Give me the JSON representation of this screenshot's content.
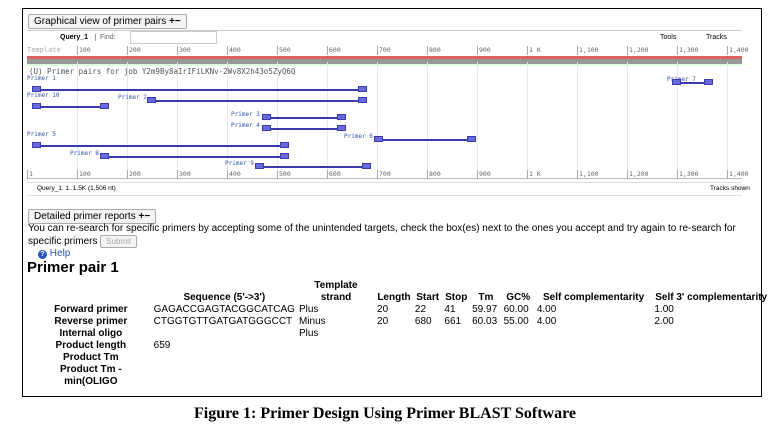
{
  "graphical": {
    "title": "Graphical view of primer pairs",
    "plus": "+",
    "minus": "−",
    "query_tab": "Query_1",
    "find_label": "Find:",
    "find_value": "",
    "tools": "Tools",
    "tracks": "Tracks",
    "template_label": "Template",
    "ticks": [
      "100",
      "200",
      "300",
      "400",
      "500",
      "600",
      "700",
      "800",
      "900",
      "1 K",
      "1,100",
      "1,200",
      "1,300",
      "1,400"
    ],
    "track_title": "(U) Primer pairs for job Y2m9By8aIrIFiLKNv-2Wv8X2h43o5ZyQ6Q",
    "primers": [
      "Primer 1",
      "Primer 10",
      "Primer 2",
      "Primer 3",
      "Primer 4",
      "Primer 5",
      "Primer 6",
      "Primer 7",
      "Primer 8",
      "Primer 9"
    ],
    "bottom_ticks": [
      "1",
      "100",
      "200",
      "300",
      "400",
      "500",
      "600",
      "700",
      "800",
      "900",
      "1 K",
      "1,100",
      "1,200",
      "1,300",
      "1,400"
    ],
    "range": "Query_1: 1..1.5K (1,506 nt)",
    "tracks_shown": "Tracks shown"
  },
  "detailed": {
    "title": "Detailed primer reports",
    "plus": "+",
    "minus": "−",
    "message": "You can re-search for specific primers by accepting some of the unintended targets, check the box(es) next to the ones you accept and try again to re-search for specific primers",
    "submit": "Submit",
    "help": "Help"
  },
  "pair": {
    "title": "Primer pair 1",
    "headers": [
      "",
      "Sequence (5'->3')",
      "Template strand",
      "Length",
      "Start",
      "Stop",
      "Tm",
      "GC%",
      "Self complementarity",
      "Self 3' complementarity"
    ],
    "rows": [
      [
        "Forward primer",
        "GAGACCGAGTACGGCATCAG",
        "Plus",
        "20",
        "22",
        "41",
        "59.97",
        "60.00",
        "4.00",
        "1.00"
      ],
      [
        "Reverse primer",
        "CTGGTGTTGATGATGGGCCT",
        "Minus",
        "20",
        "680",
        "661",
        "60.03",
        "55.00",
        "4.00",
        "2.00"
      ],
      [
        "Internal oligo",
        "",
        "Plus",
        "",
        "",
        "",
        "",
        "",
        "",
        ""
      ],
      [
        "Product length",
        "659",
        "",
        "",
        "",
        "",
        "",
        "",
        "",
        ""
      ],
      [
        "Product Tm",
        "",
        "",
        "",
        "",
        "",
        "",
        "",
        "",
        ""
      ],
      [
        "Product Tm - min(OLIGO",
        "",
        "",
        "",
        "",
        "",
        "",
        "",
        "",
        ""
      ]
    ]
  },
  "caption": "Figure 1: Primer Design Using Primer BLAST Software"
}
